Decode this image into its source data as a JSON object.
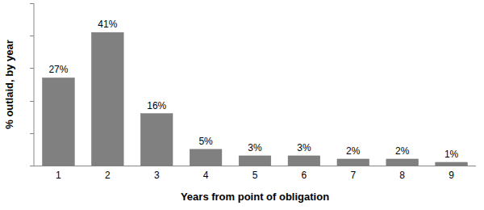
{
  "chart_data": {
    "type": "bar",
    "x_label": "Years from point of obligation",
    "y_label": "% outlaid, by year",
    "categories": [
      "1",
      "2",
      "3",
      "4",
      "5",
      "6",
      "7",
      "8",
      "9"
    ],
    "values": [
      27,
      41,
      16,
      5,
      3,
      3,
      2,
      2,
      1
    ],
    "value_labels": [
      "27%",
      "41%",
      "16%",
      "5%",
      "3%",
      "3%",
      "2%",
      "2%",
      "1%"
    ],
    "color": "#808080",
    "ylim": [
      0,
      50
    ],
    "yticks": [
      0,
      10,
      20,
      30,
      40,
      50
    ],
    "grid": false,
    "data_labels": true,
    "tick_labels": "x"
  }
}
